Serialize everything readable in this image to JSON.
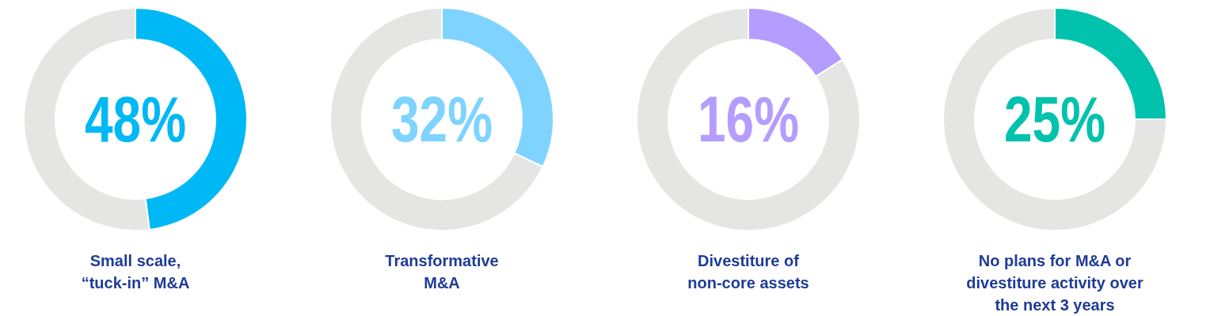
{
  "chart_data": [
    {
      "type": "donut",
      "title": "Small scale,\n“tuck-in” M&A",
      "categories": [
        null,
        null
      ],
      "values": [
        48,
        52
      ],
      "colors": [
        "#00b8f5",
        "#e5e5e3"
      ],
      "value_labels": [
        "48%",
        null
      ]
    },
    {
      "type": "donut",
      "title": "Transformative\nM&A",
      "categories": [
        null,
        null
      ],
      "values": [
        32,
        68
      ],
      "colors": [
        "#7fd3ff",
        "#e5e5e3"
      ],
      "value_labels": [
        "32%",
        null
      ]
    },
    {
      "type": "donut",
      "title": "Divestiture of\nnon-core assets",
      "categories": [
        null,
        null
      ],
      "values": [
        16,
        84
      ],
      "colors": [
        "#b59cff",
        "#e5e5e3"
      ],
      "value_labels": [
        "16%",
        null
      ]
    },
    {
      "type": "donut",
      "title": "No plans for M&A or\ndivestiture activity over\nthe next 3 years",
      "categories": [
        null,
        null
      ],
      "values": [
        25,
        75
      ],
      "colors": [
        "#00c2ad",
        "#e5e5e3"
      ],
      "value_labels": [
        "25%",
        null
      ]
    }
  ]
}
